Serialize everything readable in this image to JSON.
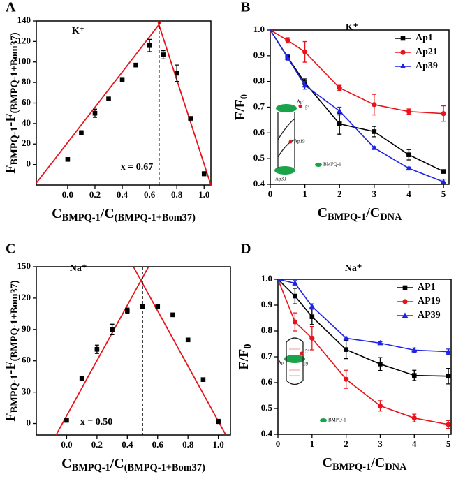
{
  "chart_data": [
    {
      "type": "scatter",
      "panel": "A",
      "annotations": [
        "K⁺",
        "x = 0.67"
      ],
      "xlabel": [
        {
          "text": "C"
        },
        {
          "text": "BMPQ-1",
          "sub": true
        },
        {
          "text": "/C"
        },
        {
          "text": "(BMPQ-1+Bom37)",
          "sub": true
        }
      ],
      "ylabel": [
        {
          "text": "F"
        },
        {
          "text": "BMPQ-1",
          "sub": true
        },
        {
          "text": "-F"
        },
        {
          "text": "(BMPQ-1+Bom37)",
          "sub": true
        }
      ],
      "x": [
        0,
        0.1,
        0.2,
        0.3,
        0.4,
        0.5,
        0.6,
        0.7,
        0.8,
        0.9,
        1.0
      ],
      "values": [
        5,
        31,
        50,
        64,
        83,
        97,
        116,
        107,
        89,
        45,
        -9
      ],
      "errors": [
        1.5,
        2,
        4,
        1.5,
        1.5,
        1.5,
        6,
        4,
        8,
        1.5,
        2
      ],
      "color": "#000000",
      "fit_lines": [
        {
          "x": [
            -0.23,
            0.69
          ],
          "values": [
            -18,
            140
          ]
        },
        {
          "x": [
            0.66,
            1.05
          ],
          "values": [
            140,
            -20
          ]
        }
      ],
      "fit_color": "#e8141b",
      "vline_x": 0.67,
      "xlim": [
        -0.23,
        1.05
      ],
      "ylim": [
        -20,
        140
      ],
      "xticks": [
        {
          "value": 0,
          "label": "0.0"
        },
        0.2,
        0.4,
        0.6,
        0.8,
        {
          "value": 1,
          "label": "1.0"
        }
      ],
      "yticks": [
        0,
        20,
        40,
        60,
        80,
        100,
        120,
        140
      ]
    },
    {
      "type": "line",
      "panel": "B",
      "annotations": [
        "K⁺"
      ],
      "xlabel": [
        {
          "text": "C"
        },
        {
          "text": "BMPQ-1",
          "sub": true
        },
        {
          "text": "/C"
        },
        {
          "text": "DNA",
          "sub": true
        }
      ],
      "ylabel": [
        {
          "text": "F/F"
        },
        {
          "text": "0",
          "sub": true
        }
      ],
      "x": [
        0,
        0.5,
        1,
        2,
        3,
        4,
        5
      ],
      "series": [
        {
          "name": "Ap1",
          "color": "#000000",
          "marker": "square",
          "values": [
            1.0,
            0.895,
            0.795,
            0.635,
            0.605,
            0.515,
            0.45
          ],
          "errors": [
            0,
            0.01,
            0.015,
            0.04,
            0.02,
            0.02,
            0.005
          ]
        },
        {
          "name": "Ap21",
          "color": "#e8141b",
          "marker": "circle",
          "values": [
            1.0,
            0.96,
            0.915,
            0.775,
            0.71,
            0.683,
            0.675
          ],
          "errors": [
            0,
            0.01,
            0.04,
            0.01,
            0.04,
            0.01,
            0.03
          ]
        },
        {
          "name": "Ap39",
          "color": "#1d24e6",
          "marker": "triangle",
          "values": [
            1.0,
            0.893,
            0.785,
            0.685,
            0.542,
            0.462,
            0.41
          ],
          "errors": [
            0,
            0.01,
            0.015,
            0.015,
            0.005,
            0.005,
            0.01
          ]
        }
      ],
      "legend": "upper right",
      "inset_labels": [
        "Ap1",
        "5'",
        "Ap19",
        "Ap39",
        "BMPQ-1"
      ],
      "xlim": [
        0,
        5.16
      ],
      "ylim": [
        0.4,
        1.0
      ],
      "xticks": [
        0,
        1,
        2,
        3,
        4,
        5
      ],
      "yticks": [
        0.4,
        0.5,
        0.6,
        0.7,
        0.8,
        0.9,
        {
          "value": 1,
          "label": "1.0"
        }
      ]
    },
    {
      "type": "scatter",
      "panel": "C",
      "annotations": [
        "Na⁺",
        "x = 0.50"
      ],
      "xlabel": [
        {
          "text": "C"
        },
        {
          "text": "BMPQ-1",
          "sub": true
        },
        {
          "text": "/C"
        },
        {
          "text": "(BMPQ-1+Bom37)",
          "sub": true
        }
      ],
      "ylabel": [
        {
          "text": "F"
        },
        {
          "text": "BMPQ-1",
          "sub": true
        },
        {
          "text": "-F"
        },
        {
          "text": "(BMPQ-1+Bom37)",
          "sub": true
        }
      ],
      "x": [
        0,
        0.1,
        0.2,
        0.3,
        0.4,
        0.5,
        0.6,
        0.7,
        0.8,
        0.9,
        1.0
      ],
      "values": [
        3,
        43,
        71,
        90,
        108,
        112,
        112,
        104,
        80,
        42,
        2
      ],
      "errors": [
        1.5,
        1.5,
        4,
        5,
        2.5,
        1.5,
        1.5,
        1.5,
        1.5,
        1.5,
        2
      ],
      "color": "#000000",
      "fit_lines": [
        {
          "x": [
            -0.07,
            0.54
          ],
          "values": [
            -11,
            150
          ]
        },
        {
          "x": [
            0.44,
            1.05
          ],
          "values": [
            150,
            -11
          ]
        }
      ],
      "fit_color": "#e8141b",
      "vline_x": 0.5,
      "xlim": [
        -0.2,
        1.08
      ],
      "ylim": [
        -11,
        150
      ],
      "xticks": [
        {
          "value": 0,
          "label": "0.0"
        },
        0.2,
        0.4,
        0.6,
        0.8,
        {
          "value": 1,
          "label": "1.0"
        }
      ],
      "yticks": [
        0,
        30,
        60,
        90,
        120,
        150
      ]
    },
    {
      "type": "line",
      "panel": "D",
      "annotations": [
        "Na⁺"
      ],
      "xlabel": [
        {
          "text": "C"
        },
        {
          "text": "BMPQ-1",
          "sub": true
        },
        {
          "text": "/C"
        },
        {
          "text": "DNA",
          "sub": true
        }
      ],
      "ylabel": [
        {
          "text": "F/F"
        },
        {
          "text": "0",
          "sub": true
        }
      ],
      "x": [
        0,
        0.5,
        1,
        2,
        3,
        4,
        5
      ],
      "series": [
        {
          "name": "AP1",
          "color": "#000000",
          "marker": "square",
          "values": [
            1.0,
            0.935,
            0.855,
            0.728,
            0.672,
            0.628,
            0.625
          ],
          "errors": [
            0,
            0.03,
            0.03,
            0.035,
            0.025,
            0.02,
            0.03
          ]
        },
        {
          "name": "AP19",
          "color": "#e8141b",
          "marker": "circle",
          "values": [
            1.0,
            0.835,
            0.772,
            0.613,
            0.51,
            0.463,
            0.438
          ],
          "errors": [
            0,
            0.035,
            0.045,
            0.035,
            0.02,
            0.015,
            0.015
          ]
        },
        {
          "name": "AP39",
          "color": "#1d24e6",
          "marker": "triangle",
          "values": [
            1.0,
            0.985,
            0.895,
            0.772,
            0.753,
            0.726,
            0.72
          ],
          "errors": [
            0,
            0.01,
            0.01,
            0.005,
            0.005,
            0.008,
            0.01
          ]
        }
      ],
      "legend": "upper right",
      "inset_labels": [
        "5'",
        "Ap",
        "19",
        "BMPQ-1"
      ],
      "xlim": [
        0,
        5.08
      ],
      "ylim": [
        0.4,
        1.0
      ],
      "xticks": [
        0,
        1,
        2,
        3,
        4,
        5
      ],
      "yticks": [
        0.4,
        0.5,
        0.6,
        0.7,
        0.8,
        0.9,
        {
          "value": 1,
          "label": "1.0"
        }
      ]
    }
  ]
}
